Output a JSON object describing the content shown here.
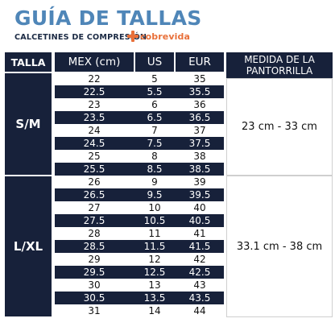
{
  "header": {
    "title": "GUÍA DE TALLAS",
    "subtitle": "CALCETINES DE COMPRESIÓN",
    "brand": "cobrevida",
    "brand_icon": "plus-cross-icon",
    "brand_color": "#e8703a",
    "title_color": "#4f86b8",
    "navy_color": "#17213a"
  },
  "table": {
    "col_talla": "TALLA",
    "col_mex": "MEX (cm)",
    "col_us": "US",
    "col_eur": "EUR",
    "col_medida_line1": "MEDIDA DE LA",
    "col_medida_line2": "PANTORRILLA",
    "groups": [
      {
        "label": "S/M",
        "measure": "23 cm - 33 cm",
        "rows": [
          {
            "mex": "22",
            "us": "5",
            "eur": "35"
          },
          {
            "mex": "22.5",
            "us": "5.5",
            "eur": "35.5"
          },
          {
            "mex": "23",
            "us": "6",
            "eur": "36"
          },
          {
            "mex": "23.5",
            "us": "6.5",
            "eur": "36.5"
          },
          {
            "mex": "24",
            "us": "7",
            "eur": "37"
          },
          {
            "mex": "24.5",
            "us": "7.5",
            "eur": "37.5"
          },
          {
            "mex": "25",
            "us": "8",
            "eur": "38"
          },
          {
            "mex": "25.5",
            "us": "8.5",
            "eur": "38.5"
          }
        ]
      },
      {
        "label": "L/XL",
        "measure": "33.1 cm - 38 cm",
        "rows": [
          {
            "mex": "26",
            "us": "9",
            "eur": "39"
          },
          {
            "mex": "26.5",
            "us": "9.5",
            "eur": "39.5"
          },
          {
            "mex": "27",
            "us": "10",
            "eur": "40"
          },
          {
            "mex": "27.5",
            "us": "10.5",
            "eur": "40.5"
          },
          {
            "mex": "28",
            "us": "11",
            "eur": "41"
          },
          {
            "mex": "28.5",
            "us": "11.5",
            "eur": "41.5"
          },
          {
            "mex": "29",
            "us": "12",
            "eur": "42"
          },
          {
            "mex": "29.5",
            "us": "12.5",
            "eur": "42.5"
          },
          {
            "mex": "30",
            "us": "13",
            "eur": "43"
          },
          {
            "mex": "30.5",
            "us": "13.5",
            "eur": "43.5"
          },
          {
            "mex": "31",
            "us": "14",
            "eur": "44"
          }
        ]
      }
    ]
  }
}
